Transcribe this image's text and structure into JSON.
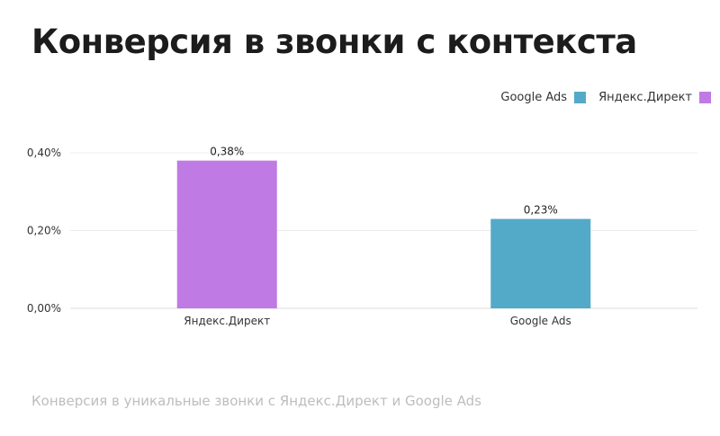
{
  "title": "Конверсия в звонки с контекста",
  "footnote": "Конверсия в уникальные звонки с Яндекс.Директ и Google Ads",
  "legend": [
    {
      "label": "Google Ads",
      "color": "#53aac8"
    },
    {
      "label": "Яндекс.Директ",
      "color": "#bf7be3"
    }
  ],
  "chart_data": {
    "type": "bar",
    "categories": [
      "Яндекс.Директ",
      "Google Ads"
    ],
    "values": [
      0.38,
      0.23
    ],
    "value_labels": [
      "0,38%",
      "0,23%"
    ],
    "colors": [
      "#bf7be3",
      "#53aac8"
    ],
    "yticks": [
      {
        "value": 0.0,
        "label": "0,00%"
      },
      {
        "value": 0.2,
        "label": "0,20%"
      },
      {
        "value": 0.4,
        "label": "0,40%"
      }
    ],
    "ylim": [
      0,
      0.4
    ],
    "grid": true,
    "legend_position": "top-right"
  }
}
